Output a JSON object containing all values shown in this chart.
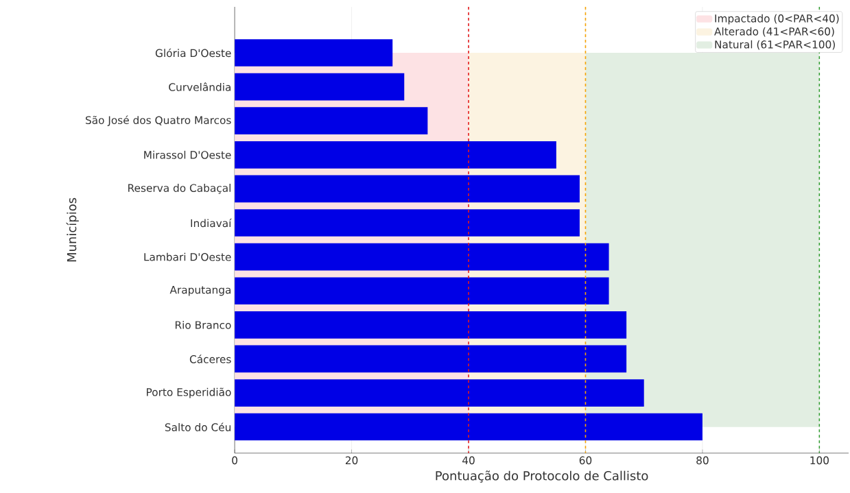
{
  "chart_data": {
    "type": "bar",
    "orientation": "horizontal",
    "xlabel": "Pontuação do Protocolo de Callisto",
    "ylabel": "Municípios",
    "categories": [
      "Glória D'Oeste",
      "Curvelândia",
      "São José dos Quatro Marcos",
      "Mirassol D'Oeste",
      "Reserva do Cabaçal",
      "Indiavaí",
      "Lambari D'Oeste",
      "Araputanga",
      "Rio Branco",
      "Cáceres",
      "Porto Esperidião",
      "Salto do Céu"
    ],
    "values": [
      27,
      29,
      33,
      55,
      59,
      59,
      64,
      64,
      67,
      67,
      70,
      80
    ],
    "color": "#0000e6",
    "xlim": [
      0,
      105
    ],
    "xticks": [
      0,
      20,
      40,
      60,
      80,
      100
    ],
    "grid": "x",
    "legend": "top right",
    "bands": [
      {
        "axis": "x",
        "from": 0,
        "to": 40,
        "label": "Impactado (0<PAR<40)",
        "color": "#fde2e4"
      },
      {
        "axis": "x",
        "from": 40,
        "to": 60,
        "label": "Alterado (41<PAR<60)",
        "color": "#fcf3e1"
      },
      {
        "axis": "x",
        "from": 60,
        "to": 100,
        "label": "Natural (61<PAR<100)",
        "color": "#e2eee2"
      }
    ],
    "ref_lines": [
      {
        "axis": "x",
        "value": 40,
        "color": "#e41a1c",
        "line_style": "dashed"
      },
      {
        "axis": "x",
        "value": 60,
        "color": "#f5a300",
        "line_style": "dashed"
      },
      {
        "axis": "x",
        "value": 100,
        "color": "#2e9b2e",
        "line_style": "dashed"
      }
    ]
  }
}
